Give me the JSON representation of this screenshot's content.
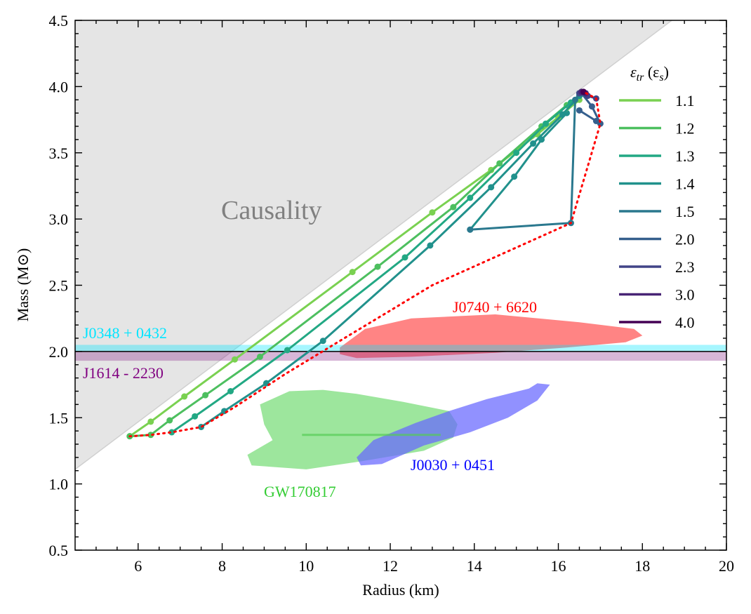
{
  "chart_data": {
    "type": "line",
    "xlabel": "Radius (km)",
    "ylabel": "Mass (M⊙)",
    "xlim": [
      4.5,
      20
    ],
    "ylim": [
      0.5,
      4.5
    ],
    "xticks": [
      6,
      8,
      10,
      12,
      14,
      16,
      18,
      20
    ],
    "yticks": [
      0.5,
      1.0,
      1.5,
      2.0,
      2.5,
      3.0,
      3.5,
      4.0,
      4.5
    ],
    "xtick_labels": [
      "6",
      "8",
      "10",
      "12",
      "14",
      "16",
      "18",
      "20"
    ],
    "ytick_labels": [
      "0.5",
      "1.0",
      "1.5",
      "2.0",
      "2.5",
      "3.0",
      "3.5",
      "4.0",
      "4.5"
    ],
    "legend": {
      "title": "εtr (εs)",
      "title_main": "ε",
      "title_sub": "tr",
      "title_paren": " (ε",
      "title_sub2": "s",
      "title_close": ")",
      "location": "top-right"
    },
    "causality": {
      "label": "Causality",
      "line_points": [
        [
          4.5,
          1.11
        ],
        [
          18.7,
          4.5
        ]
      ],
      "color": "#e5e5e5"
    },
    "series": [
      {
        "name": "1.1",
        "color": "#7ad151",
        "points": [
          [
            5.8,
            1.36
          ],
          [
            6.3,
            1.47
          ],
          [
            7.1,
            1.66
          ],
          [
            8.3,
            1.94
          ],
          [
            11.1,
            2.6
          ],
          [
            13,
            3.05
          ],
          [
            14.4,
            3.37
          ],
          [
            15.5,
            3.64
          ],
          [
            16,
            3.77
          ],
          [
            16.5,
            3.9
          ]
        ]
      },
      {
        "name": "1.2",
        "color": "#4dbf5f",
        "points": [
          [
            5.8,
            1.36
          ],
          [
            6.3,
            1.37
          ],
          [
            6.75,
            1.48
          ],
          [
            7.6,
            1.67
          ],
          [
            8.9,
            1.96
          ],
          [
            11.7,
            2.64
          ],
          [
            13.5,
            3.09
          ],
          [
            14.6,
            3.42
          ],
          [
            15.6,
            3.7
          ],
          [
            16.2,
            3.86
          ],
          [
            16.5,
            3.93
          ]
        ]
      },
      {
        "name": "1.3",
        "color": "#22a884",
        "points": [
          [
            6.8,
            1.39
          ],
          [
            7.35,
            1.51
          ],
          [
            8.2,
            1.7
          ],
          [
            9.55,
            2.01
          ],
          [
            12.35,
            2.71
          ],
          [
            13.9,
            3.16
          ],
          [
            15,
            3.5
          ],
          [
            15.7,
            3.72
          ],
          [
            16.3,
            3.88
          ],
          [
            16.5,
            3.93
          ]
        ]
      },
      {
        "name": "1.4",
        "color": "#21918c",
        "points": [
          [
            7.5,
            1.43
          ],
          [
            8.05,
            1.55
          ],
          [
            9.05,
            1.76
          ],
          [
            10.4,
            2.08
          ],
          [
            12.95,
            2.8
          ],
          [
            14.4,
            3.24
          ],
          [
            15.4,
            3.57
          ],
          [
            16.1,
            3.79
          ],
          [
            16.5,
            3.93
          ]
        ]
      },
      {
        "name": "1.5",
        "color": "#2a788e",
        "points": [
          [
            13.9,
            2.92
          ],
          [
            16.3,
            2.97
          ],
          [
            16.4,
            3.9
          ],
          [
            16.5,
            3.95
          ]
        ]
      },
      {
        "name": "2.0",
        "color": "#355f8d",
        "points": [
          [
            16.5,
            3.82
          ],
          [
            16.9,
            3.74
          ],
          [
            17,
            3.72
          ],
          [
            16.8,
            3.85
          ],
          [
            16.55,
            3.95
          ]
        ]
      },
      {
        "name": "2.3",
        "color": "#414487",
        "points": [
          [
            16.5,
            3.95
          ],
          [
            16.7,
            3.93
          ],
          [
            16.9,
            3.91
          ]
        ]
      },
      {
        "name": "3.0",
        "color": "#482475",
        "points": [
          [
            16.55,
            3.96
          ],
          [
            16.65,
            3.95
          ]
        ]
      },
      {
        "name": "4.0",
        "color": "#440154",
        "points": [
          [
            16.6,
            3.96
          ]
        ]
      }
    ],
    "extra_line": {
      "color": "#21918c",
      "points": [
        [
          13.9,
          2.92
        ],
        [
          14.95,
          3.32
        ],
        [
          15.6,
          3.6
        ],
        [
          16.2,
          3.8
        ]
      ]
    },
    "dotted_envelope": {
      "color": "#ff0000",
      "points": [
        [
          5.8,
          1.36
        ],
        [
          6.3,
          1.37
        ],
        [
          6.8,
          1.39
        ],
        [
          7.5,
          1.43
        ],
        [
          8.3,
          1.58
        ],
        [
          9.5,
          1.83
        ],
        [
          10.8,
          2.08
        ],
        [
          13,
          2.5
        ],
        [
          16.3,
          2.97
        ],
        [
          17,
          3.72
        ],
        [
          16.9,
          3.91
        ],
        [
          16.6,
          3.96
        ]
      ]
    },
    "bands": [
      {
        "name": "J0348 + 0432",
        "label": "J0348 + 0432",
        "range": [
          2.0,
          2.05
        ],
        "color": "#00e5ff",
        "label_color": "#00e5ff"
      },
      {
        "name": "J1614 - 2230",
        "label": "J1614 - 2230",
        "range": [
          1.93,
          2.0
        ],
        "color": "#8b2e8b",
        "label_color": "#800080"
      }
    ],
    "reference_line_y": 2.0,
    "regions": [
      {
        "name": "J0740 + 6620",
        "label": "J0740 + 6620",
        "color": "#ff5555",
        "label_color": "#ff0000",
        "outline": [
          [
            10.8,
            2.03
          ],
          [
            11.4,
            2.17
          ],
          [
            12.5,
            2.25
          ],
          [
            14.5,
            2.28
          ],
          [
            16.5,
            2.22
          ],
          [
            17.8,
            2.17
          ],
          [
            18,
            2.12
          ],
          [
            17.6,
            2.07
          ],
          [
            16.2,
            2.03
          ],
          [
            14.5,
            1.99
          ],
          [
            12.5,
            1.96
          ],
          [
            11.2,
            1.95
          ],
          [
            10.8,
            1.98
          ]
        ]
      },
      {
        "name": "GW170817",
        "label": "GW170817",
        "color": "#77dd77",
        "label_color": "#33cc33",
        "outline": [
          [
            8.9,
            1.6
          ],
          [
            9.6,
            1.7
          ],
          [
            10.4,
            1.71
          ],
          [
            11.2,
            1.68
          ],
          [
            12.3,
            1.62
          ],
          [
            13.4,
            1.55
          ],
          [
            13.6,
            1.45
          ],
          [
            13.5,
            1.35
          ],
          [
            12.8,
            1.25
          ],
          [
            11.3,
            1.17
          ],
          [
            10,
            1.11
          ],
          [
            8.7,
            1.14
          ],
          [
            8.6,
            1.22
          ],
          [
            9.2,
            1.33
          ],
          [
            9,
            1.45
          ]
        ]
      },
      {
        "name": "J0030 + 0451",
        "label": "J0030 + 0451",
        "color": "#6666ff",
        "label_color": "#0000ff",
        "outline": [
          [
            11.2,
            1.2
          ],
          [
            11.6,
            1.33
          ],
          [
            12.6,
            1.46
          ],
          [
            13.4,
            1.55
          ],
          [
            14.3,
            1.64
          ],
          [
            15.3,
            1.72
          ],
          [
            15.5,
            1.76
          ],
          [
            15.8,
            1.75
          ],
          [
            15.5,
            1.63
          ],
          [
            14.8,
            1.5
          ],
          [
            13.9,
            1.39
          ],
          [
            12.8,
            1.29
          ],
          [
            11.8,
            1.15
          ],
          [
            11.3,
            1.14
          ]
        ]
      }
    ]
  }
}
